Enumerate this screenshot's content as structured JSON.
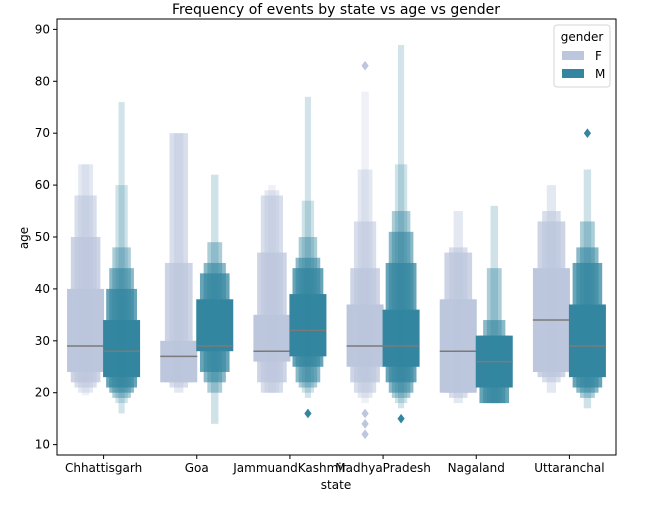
{
  "chart_data": {
    "type": "boxen",
    "title": "Frequency of events by state vs age vs gender",
    "xlabel": "state",
    "ylabel": "age",
    "categories": [
      "Chhattisgarh",
      "Goa",
      "JammuandKashmir",
      "MadhyaPradesh",
      "Nagaland",
      "Uttaranchal"
    ],
    "ylim": [
      8,
      92
    ],
    "yticks": [
      10,
      20,
      30,
      40,
      50,
      60,
      70,
      80,
      90
    ],
    "grid": false,
    "legend": {
      "title": "gender",
      "placement": "top-right",
      "entries": [
        "F",
        "M"
      ]
    },
    "colors": {
      "F": "#bcc6dc",
      "M": "#3486a0",
      "median": "#7a7a7a",
      "axis": "#000000"
    },
    "series": [
      {
        "name": "F",
        "values": [
          {
            "category": "Chhattisgarh",
            "median": 29,
            "levels": [
              [
                24,
                40
              ],
              [
                22,
                50
              ],
              [
                21,
                58
              ],
              [
                20,
                64
              ],
              [
                19.5,
                64
              ]
            ],
            "outliers": []
          },
          {
            "category": "Goa",
            "median": 27,
            "levels": [
              [
                22,
                30
              ],
              [
                22,
                45
              ],
              [
                21,
                70
              ],
              [
                20,
                70
              ]
            ],
            "outliers": []
          },
          {
            "category": "JammuandKashmir",
            "median": 28,
            "levels": [
              [
                26,
                35
              ],
              [
                22,
                47
              ],
              [
                20,
                58
              ],
              [
                20,
                59
              ],
              [
                20,
                60
              ]
            ],
            "outliers": []
          },
          {
            "category": "MadhyaPradesh",
            "median": 29,
            "levels": [
              [
                25,
                37
              ],
              [
                22,
                44
              ],
              [
                20,
                53
              ],
              [
                19,
                63
              ],
              [
                18,
                78
              ]
            ],
            "outliers": [
              83,
              16,
              14,
              12
            ]
          },
          {
            "category": "Nagaland",
            "median": 28,
            "levels": [
              [
                20,
                38
              ],
              [
                20,
                47
              ],
              [
                19,
                48
              ],
              [
                18,
                55
              ]
            ],
            "outliers": []
          },
          {
            "category": "Uttaranchal",
            "median": 34,
            "levels": [
              [
                24,
                44
              ],
              [
                23,
                53
              ],
              [
                22,
                55
              ],
              [
                20,
                60
              ]
            ],
            "outliers": []
          }
        ]
      },
      {
        "name": "M",
        "values": [
          {
            "category": "Chhattisgarh",
            "median": 28,
            "levels": [
              [
                23,
                34
              ],
              [
                21,
                40
              ],
              [
                20,
                44
              ],
              [
                19,
                48
              ],
              [
                18,
                60
              ],
              [
                16,
                76
              ]
            ],
            "outliers": []
          },
          {
            "category": "Goa",
            "median": 29,
            "levels": [
              [
                28,
                38
              ],
              [
                24,
                43
              ],
              [
                22,
                45
              ],
              [
                20,
                49
              ],
              [
                14,
                62
              ]
            ],
            "outliers": []
          },
          {
            "category": "JammuandKashmir",
            "median": 32,
            "levels": [
              [
                27,
                39
              ],
              [
                25,
                44
              ],
              [
                22,
                46
              ],
              [
                21,
                50
              ],
              [
                20,
                57
              ],
              [
                19,
                77
              ]
            ],
            "outliers": [
              16
            ]
          },
          {
            "category": "MadhyaPradesh",
            "median": 29,
            "levels": [
              [
                25,
                36
              ],
              [
                22,
                45
              ],
              [
                20,
                51
              ],
              [
                19,
                55
              ],
              [
                18,
                64
              ],
              [
                17,
                87
              ]
            ],
            "outliers": [
              15
            ]
          },
          {
            "category": "Nagaland",
            "median": 26,
            "levels": [
              [
                21,
                31
              ],
              [
                18,
                31
              ],
              [
                18,
                34
              ],
              [
                18,
                44
              ],
              [
                18,
                56
              ]
            ],
            "outliers": []
          },
          {
            "category": "Uttaranchal",
            "median": 29,
            "levels": [
              [
                23,
                37
              ],
              [
                21,
                45
              ],
              [
                20,
                48
              ],
              [
                19,
                53
              ],
              [
                17,
                63
              ]
            ],
            "outliers": [
              70
            ]
          }
        ]
      }
    ]
  }
}
